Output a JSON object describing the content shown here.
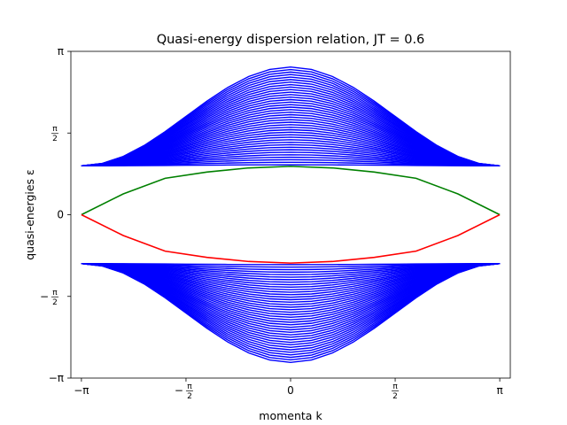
{
  "chart_data": {
    "type": "line",
    "title": "Quasi-energy dispersion relation, JT = 0.6",
    "xlabel": "momenta k",
    "ylabel": "quasi-energies ε",
    "xlim": [
      -3.3,
      3.3
    ],
    "ylim": [
      -3.14159,
      3.14159
    ],
    "x_ticks": [
      {
        "value": -3.14159,
        "label": "−π"
      },
      {
        "value": -1.5708,
        "label": "−π/2"
      },
      {
        "value": 0,
        "label": "0"
      },
      {
        "value": 1.5708,
        "label": "π/2"
      },
      {
        "value": 3.14159,
        "label": "π"
      }
    ],
    "y_ticks": [
      {
        "value": -3.14159,
        "label": "−π"
      },
      {
        "value": -1.5708,
        "label": "−π/2"
      },
      {
        "value": 0,
        "label": "0"
      },
      {
        "value": 1.5708,
        "label": "π/2"
      },
      {
        "value": 3.14159,
        "label": "π"
      }
    ],
    "grid": false,
    "bulk_bands": {
      "color": "#0000ff",
      "band_count_per_side": 40,
      "k_samples": 21,
      "edge_energy": 0.94,
      "outer_energy_at_zero_k": 2.84,
      "inner_energy_at_zero_k": 0.96
    },
    "edge_states": [
      {
        "color": "#008000",
        "k": [
          -3.14159,
          -2.51327,
          -1.88496,
          -1.25664,
          -0.62832,
          0,
          0.62832,
          1.25664,
          1.88496,
          2.51327,
          3.14159
        ],
        "e": [
          0,
          0.4,
          0.7,
          0.82,
          0.9,
          0.93,
          0.9,
          0.82,
          0.7,
          0.4,
          0
        ]
      },
      {
        "color": "#ff0000",
        "k": [
          -3.14159,
          -2.51327,
          -1.88496,
          -1.25664,
          -0.62832,
          0,
          0.62832,
          1.25664,
          1.88496,
          2.51327,
          3.14159
        ],
        "e": [
          0,
          -0.4,
          -0.7,
          -0.82,
          -0.9,
          -0.93,
          -0.9,
          -0.82,
          -0.7,
          -0.4,
          0
        ]
      }
    ]
  }
}
